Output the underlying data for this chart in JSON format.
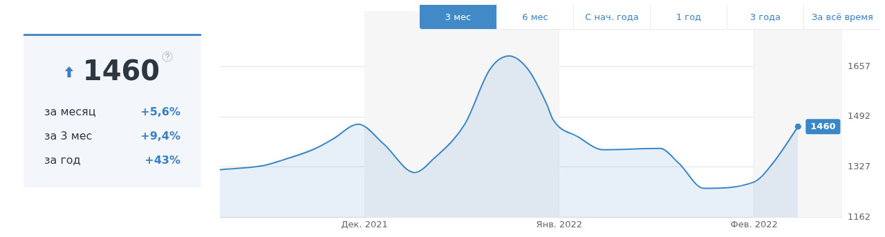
{
  "chart_data": [
    {
      "type": "other",
      "title": "1460",
      "annotations": [
        "за месяц",
        "+5,6%",
        "за 3 мес",
        "+9,4%",
        "за год",
        "+43%"
      ]
    },
    {
      "type": "area",
      "annotations": [
        "3 мес",
        "6 мес",
        "С нач. года",
        "1 год",
        "3 года",
        "За всё время"
      ],
      "x": [
        "2021-11-08",
        "2021-11-15",
        "2021-11-18",
        "2021-11-23",
        "2021-11-26",
        "2021-11-30",
        "2021-12-04",
        "2021-12-09",
        "2021-12-12",
        "2021-12-17",
        "2021-12-21",
        "2021-12-24",
        "2021-12-27",
        "2021-12-30",
        "2021-12-31",
        "2022-01-04",
        "2022-01-08",
        "2022-01-17",
        "2022-01-20",
        "2022-01-24",
        "2022-02-01",
        "2022-02-04",
        "2022-02-08"
      ],
      "series": [
        {
          "color": "#3a87c8",
          "values": [
            1318,
            1332,
            1350,
            1386,
            1419,
            1468,
            1404,
            1309,
            1354,
            1469,
            1649,
            1692,
            1649,
            1534,
            1483,
            1426,
            1384,
            1388,
            1340,
            1257,
            1278,
            1340,
            1460
          ],
          "value_labels": [
            null,
            null,
            null,
            null,
            null,
            null,
            null,
            null,
            null,
            null,
            null,
            null,
            null,
            null,
            null,
            null,
            null,
            null,
            null,
            null,
            null,
            null,
            "1460"
          ]
        }
      ],
      "xlim": [
        "2021-11-08",
        "2022-02-15"
      ],
      "xticks": [
        {
          "value": "2021-12-01",
          "label": "Дек. 2021"
        },
        {
          "value": "2022-01-01",
          "label": "Янв. 2022"
        },
        {
          "value": "2022-02-01",
          "label": "Фев. 2022"
        }
      ],
      "ylim": [
        1162,
        1840
      ],
      "yticks": [
        1162,
        1327,
        1492,
        1657
      ],
      "bands": [
        {
          "axis": "x",
          "from": "2021-12-01",
          "to": "2022-01-01",
          "color": "#f6f6f6"
        },
        {
          "axis": "x",
          "from": "2022-02-01",
          "to": "2022-02-15",
          "color": "#f6f6f6"
        }
      ],
      "grid": true,
      "marker": "none",
      "line_style": "solid",
      "legend": false
    }
  ]
}
